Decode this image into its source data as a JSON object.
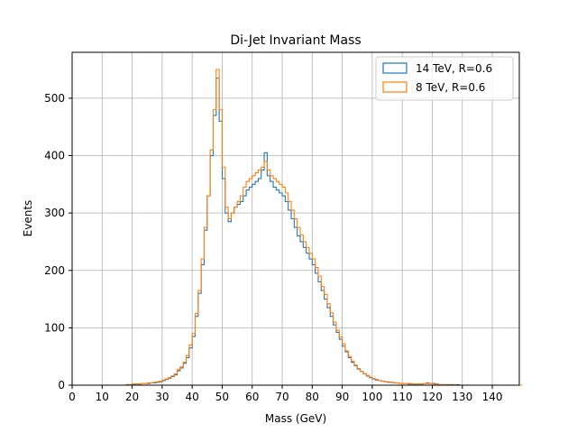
{
  "chart_data": {
    "type": "histogram-step",
    "title": "Di-Jet Invariant Mass",
    "xlabel": "Mass (GeV)",
    "ylabel": "Events",
    "xlim": [
      0,
      149
    ],
    "ylim": [
      0,
      580
    ],
    "xticks": [
      0,
      10,
      20,
      30,
      40,
      50,
      60,
      70,
      80,
      90,
      100,
      110,
      120,
      130,
      140
    ],
    "yticks": [
      0,
      100,
      200,
      300,
      400,
      500
    ],
    "grid": true,
    "legend": "upper-right",
    "bin_width": 1,
    "bin_start": 0,
    "series": [
      {
        "name": "14 TeV, R=0.6",
        "color": "#1f77b4",
        "values": [
          0,
          0,
          0,
          0,
          0,
          0,
          0,
          0,
          0,
          0,
          0,
          0,
          0,
          0,
          0,
          0,
          0,
          0,
          1,
          1,
          2,
          2,
          2,
          3,
          3,
          3,
          4,
          4,
          5,
          6,
          8,
          10,
          12,
          15,
          18,
          25,
          30,
          38,
          48,
          65,
          85,
          120,
          160,
          210,
          270,
          330,
          400,
          470,
          535,
          460,
          360,
          300,
          285,
          300,
          310,
          315,
          320,
          330,
          340,
          345,
          350,
          355,
          360,
          375,
          405,
          365,
          355,
          345,
          340,
          335,
          330,
          320,
          305,
          290,
          275,
          260,
          250,
          240,
          230,
          220,
          210,
          195,
          180,
          165,
          150,
          135,
          120,
          105,
          92,
          80,
          68,
          58,
          48,
          40,
          34,
          28,
          24,
          20,
          16,
          13,
          11,
          9,
          8,
          7,
          6,
          5,
          5,
          4,
          4,
          3,
          3,
          3,
          2,
          2,
          2,
          2,
          2,
          3,
          4,
          3,
          3,
          2,
          1,
          1,
          1,
          1,
          1,
          0,
          1,
          0,
          0,
          0,
          0,
          0,
          0,
          0,
          0,
          0,
          0,
          0,
          0,
          0,
          0,
          0,
          0,
          0,
          0,
          0,
          0,
          0
        ]
      },
      {
        "name": "8 TeV, R=0.6",
        "color": "#ff7f0e",
        "values": [
          0,
          0,
          0,
          0,
          0,
          0,
          0,
          0,
          0,
          0,
          0,
          0,
          0,
          0,
          0,
          0,
          0,
          0,
          1,
          1,
          2,
          2,
          2,
          3,
          3,
          4,
          4,
          5,
          6,
          7,
          9,
          11,
          13,
          16,
          20,
          27,
          32,
          40,
          52,
          70,
          90,
          125,
          165,
          220,
          275,
          330,
          410,
          480,
          550,
          480,
          380,
          310,
          290,
          300,
          310,
          320,
          330,
          345,
          355,
          360,
          365,
          370,
          375,
          380,
          390,
          375,
          365,
          360,
          355,
          350,
          345,
          335,
          320,
          305,
          290,
          275,
          262,
          250,
          240,
          230,
          220,
          205,
          190,
          172,
          158,
          142,
          126,
          110,
          96,
          84,
          72,
          60,
          50,
          42,
          35,
          29,
          24,
          20,
          17,
          14,
          12,
          10,
          8,
          7,
          6,
          6,
          5,
          4,
          4,
          3,
          3,
          3,
          3,
          2,
          2,
          2,
          2,
          3,
          3,
          3,
          2,
          2,
          1,
          1,
          1,
          1,
          0,
          1,
          0,
          0,
          0,
          0,
          0,
          0,
          0,
          0,
          0,
          0,
          0,
          0,
          0,
          0,
          0,
          0,
          0,
          0,
          0,
          0,
          0,
          0
        ]
      }
    ]
  }
}
